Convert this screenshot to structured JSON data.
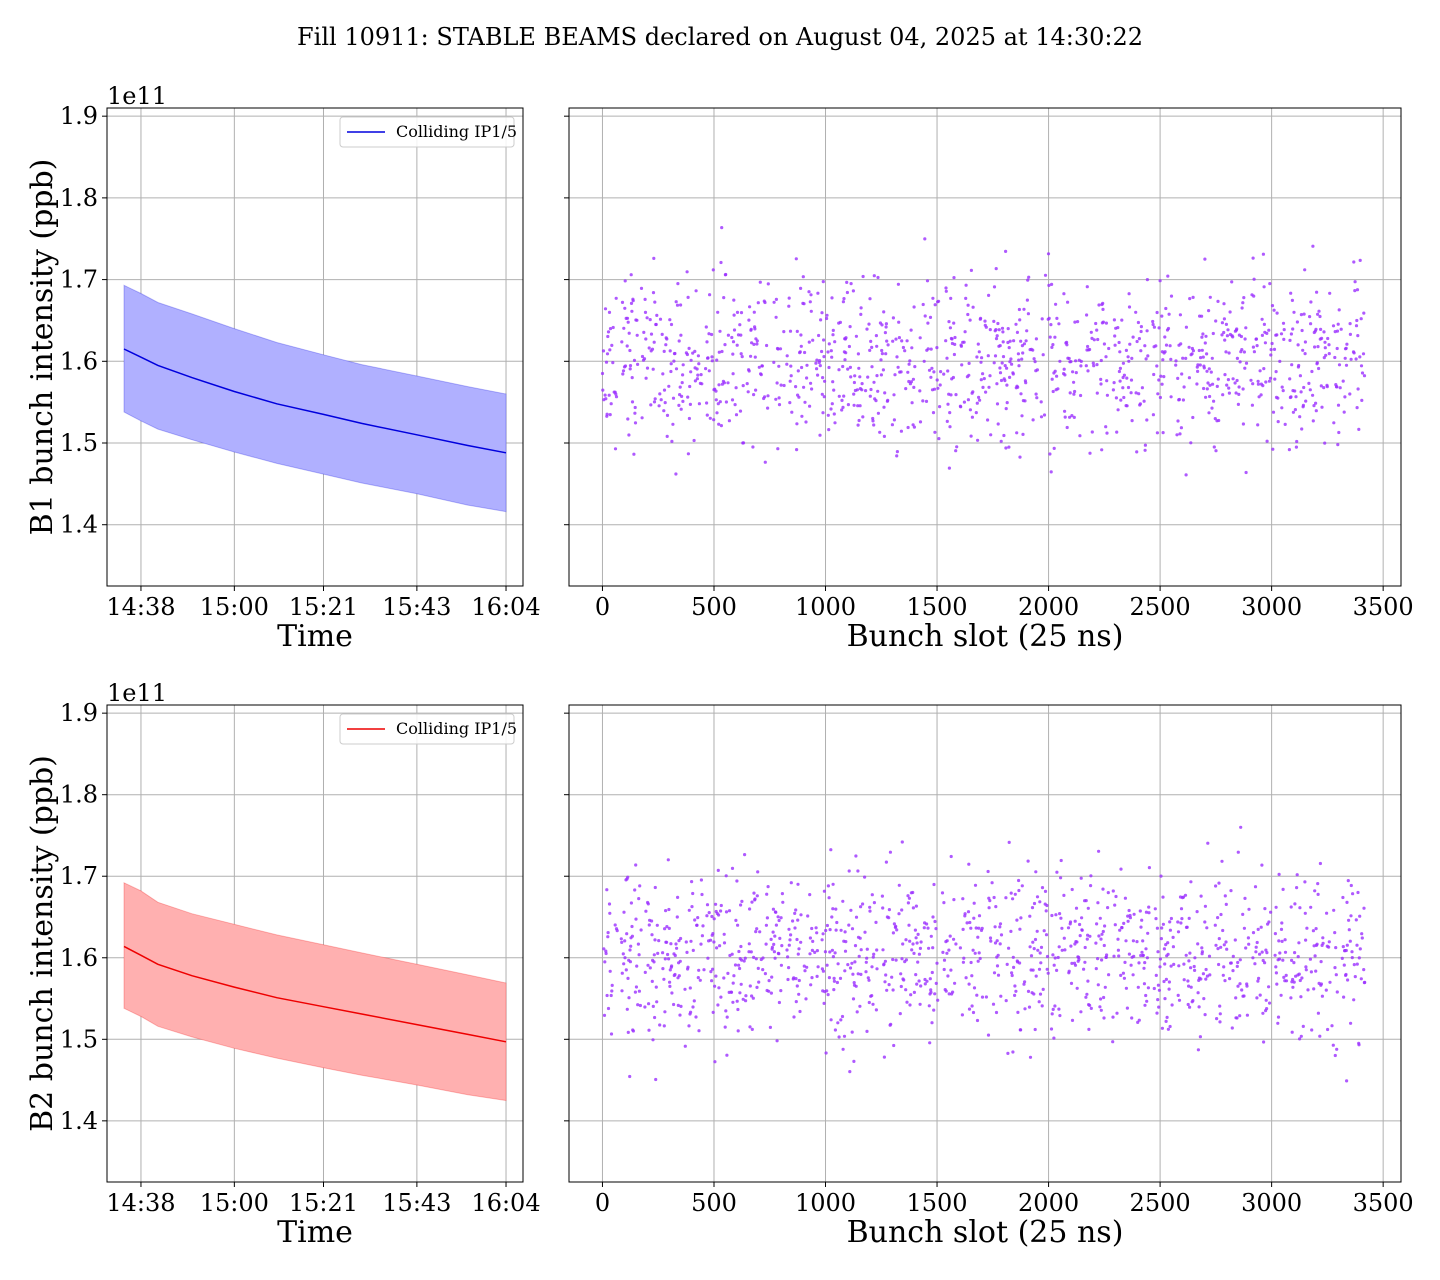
{
  "title": "Fill 10911: STABLE BEAMS declared on August 04, 2025 at 14:30:22",
  "colors": {
    "b1_line": "#0000dd",
    "b1_band": "#b0b0ff",
    "b2_line": "#ee0000",
    "b2_band": "#ffb0b0",
    "scatter": "#9b30ff",
    "grid": "#b0b0b0"
  },
  "chart_data": [
    {
      "id": "b1_time",
      "type": "area",
      "xlabel": "Time",
      "ylabel": "B1 bunch intensity (ppb)",
      "y_offset_label": "1e11",
      "ylim": [
        1.325,
        1.91
      ],
      "y_ticks": [
        "1.4",
        "1.5",
        "1.6",
        "1.7",
        "1.8",
        "1.9"
      ],
      "x_range": [
        "14:30",
        "16:08"
      ],
      "x_ticks": [
        "14:38",
        "15:00",
        "15:21",
        "15:43",
        "16:04"
      ],
      "legend": "Colliding IP1/5",
      "legend_position": "upper right",
      "grid": true,
      "series": [
        {
          "x": [
            "14:34",
            "14:38",
            "14:42",
            "14:50",
            "15:00",
            "15:10",
            "15:21",
            "15:30",
            "15:43",
            "15:55",
            "16:04"
          ],
          "mean": [
            1.615,
            1.605,
            1.595,
            1.58,
            1.563,
            1.548,
            1.535,
            1.524,
            1.51,
            1.497,
            1.488
          ],
          "upper": [
            1.693,
            1.683,
            1.672,
            1.658,
            1.64,
            1.623,
            1.608,
            1.596,
            1.582,
            1.569,
            1.56
          ],
          "lower": [
            1.538,
            1.527,
            1.517,
            1.504,
            1.489,
            1.475,
            1.462,
            1.451,
            1.438,
            1.424,
            1.416
          ]
        }
      ]
    },
    {
      "id": "b1_slots",
      "type": "scatter",
      "xlabel": "Bunch slot (25 ns)",
      "ylim": [
        1.325,
        1.91
      ],
      "xlim": [
        -150,
        3580
      ],
      "x_ticks": [
        "0",
        "500",
        "1000",
        "1500",
        "2000",
        "2500",
        "3000",
        "3500"
      ],
      "grid": true,
      "scatter": {
        "slot_min": 0,
        "slot_max": 3420,
        "center": 1.6,
        "spread": 0.072,
        "seed": 11
      }
    },
    {
      "id": "b2_time",
      "type": "area",
      "xlabel": "Time",
      "ylabel": "B2 bunch intensity (ppb)",
      "y_offset_label": "1e11",
      "ylim": [
        1.325,
        1.91
      ],
      "y_ticks": [
        "1.4",
        "1.5",
        "1.6",
        "1.7",
        "1.8",
        "1.9"
      ],
      "x_range": [
        "14:30",
        "16:08"
      ],
      "x_ticks": [
        "14:38",
        "15:00",
        "15:21",
        "15:43",
        "16:04"
      ],
      "legend": "Colliding IP1/5",
      "legend_position": "upper right",
      "grid": true,
      "series": [
        {
          "x": [
            "14:34",
            "14:38",
            "14:42",
            "14:50",
            "15:00",
            "15:10",
            "15:21",
            "15:30",
            "15:43",
            "15:55",
            "16:04"
          ],
          "mean": [
            1.614,
            1.603,
            1.592,
            1.578,
            1.564,
            1.551,
            1.54,
            1.531,
            1.518,
            1.506,
            1.497
          ],
          "upper": [
            1.692,
            1.682,
            1.668,
            1.654,
            1.641,
            1.628,
            1.616,
            1.606,
            1.592,
            1.579,
            1.569
          ],
          "lower": [
            1.538,
            1.528,
            1.516,
            1.503,
            1.489,
            1.477,
            1.465,
            1.456,
            1.444,
            1.432,
            1.425
          ]
        }
      ]
    },
    {
      "id": "b2_slots",
      "type": "scatter",
      "xlabel": "Bunch slot (25 ns)",
      "ylim": [
        1.325,
        1.91
      ],
      "xlim": [
        -150,
        3580
      ],
      "x_ticks": [
        "0",
        "500",
        "1000",
        "1500",
        "2000",
        "2500",
        "3000",
        "3500"
      ],
      "grid": true,
      "scatter": {
        "slot_min": 0,
        "slot_max": 3420,
        "center": 1.603,
        "spread": 0.072,
        "seed": 29
      }
    }
  ]
}
